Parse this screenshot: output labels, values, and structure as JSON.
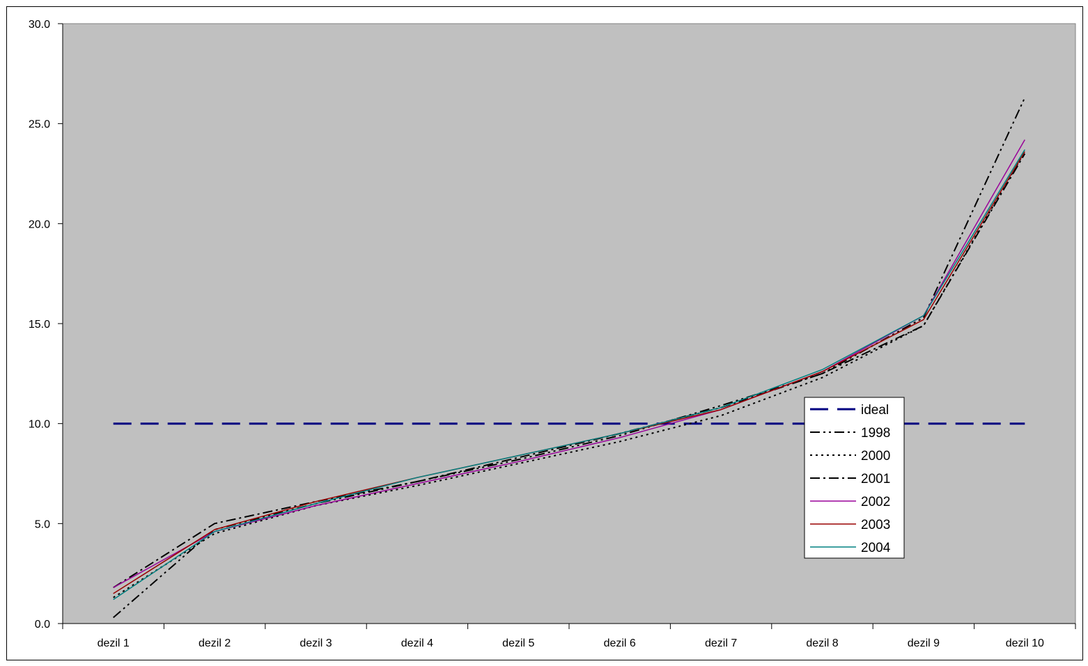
{
  "chart_data": {
    "type": "line",
    "title": "",
    "xlabel": "",
    "ylabel": "",
    "categories": [
      "dezil 1",
      "dezil 2",
      "dezil 3",
      "dezil 4",
      "dezil 5",
      "dezil 6",
      "dezil 7",
      "dezil 8",
      "dezil 9",
      "dezil 10"
    ],
    "ylim": [
      0,
      30
    ],
    "yticks": [
      "0.0",
      "5.0",
      "10.0",
      "15.0",
      "20.0",
      "25.0",
      "30.0"
    ],
    "grid": false,
    "plot_background": "#C0C0C0",
    "legend_position": "right-middle",
    "series": [
      {
        "name": "ideal",
        "color": "#000080",
        "style": "dash",
        "values": [
          10,
          10,
          10,
          10,
          10,
          10,
          10,
          10,
          10,
          10
        ]
      },
      {
        "name": "1998",
        "color": "#000000",
        "style": "dash-dot-dot",
        "values": [
          0.3,
          4.7,
          6.0,
          7.1,
          8.2,
          9.4,
          10.9,
          12.5,
          15.3,
          26.3
        ]
      },
      {
        "name": "2000",
        "color": "#000000",
        "style": "dot",
        "values": [
          1.3,
          4.5,
          5.9,
          6.9,
          8.0,
          9.1,
          10.4,
          12.3,
          14.9,
          23.6
        ]
      },
      {
        "name": "2001",
        "color": "#000000",
        "style": "dash-dot",
        "values": [
          1.8,
          5.0,
          6.1,
          7.1,
          8.3,
          9.5,
          10.8,
          12.5,
          14.9,
          23.5
        ]
      },
      {
        "name": "2002",
        "color": "#990099",
        "style": "solid",
        "values": [
          1.8,
          4.6,
          5.9,
          7.0,
          8.1,
          9.3,
          10.7,
          12.6,
          15.4,
          24.2
        ]
      },
      {
        "name": "2003",
        "color": "#990000",
        "style": "solid",
        "values": [
          1.5,
          4.7,
          6.1,
          7.3,
          8.4,
          9.5,
          10.7,
          12.6,
          15.2,
          23.6
        ]
      },
      {
        "name": "2004",
        "color": "#008080",
        "style": "solid",
        "values": [
          1.2,
          4.6,
          6.0,
          7.3,
          8.4,
          9.5,
          10.8,
          12.7,
          15.4,
          23.7
        ]
      }
    ]
  }
}
